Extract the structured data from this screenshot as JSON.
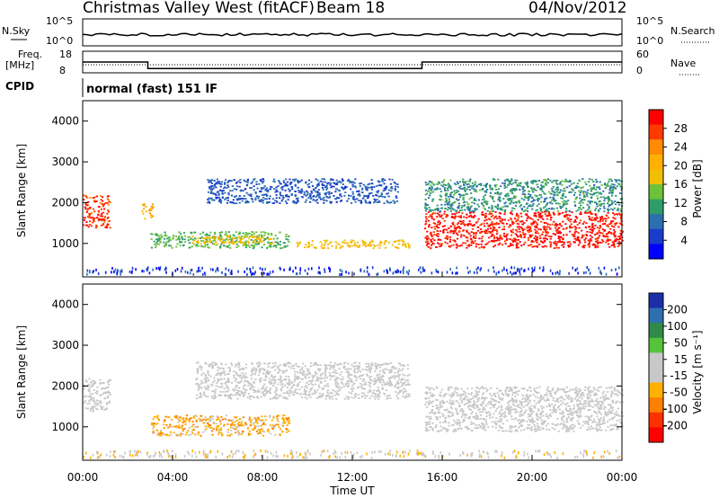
{
  "header": {
    "station": "Christmas Valley West (fitACF)",
    "beam": "Beam 18",
    "date": "04/Nov/2012"
  },
  "top_panels": {
    "nsky_label": "N.Sky",
    "nsearch_label": "N.Search",
    "nsky_ticks": [
      "10^5",
      "10^0"
    ],
    "nsearch_ticks": [
      "10^5",
      "10^0"
    ],
    "freq_label_1": "Freq.",
    "freq_label_2": "[MHz]",
    "freq_ticks": [
      "18",
      "8"
    ],
    "nave_label": "Nave",
    "nave_ticks": [
      "60",
      "0"
    ],
    "cpid_label": "CPID",
    "cpid_text": "normal (fast) 151 IF"
  },
  "colorbars": {
    "power_label": "Power [dB]",
    "power_ticks": [
      "28",
      "24",
      "20",
      "16",
      "12",
      "8",
      "4"
    ],
    "power_colors": [
      "#ff0000",
      "#ff3a00",
      "#ff8c00",
      "#ffb000",
      "#f0c000",
      "#6dc23a",
      "#2f9d6a",
      "#2b6fb0",
      "#1a3ccc",
      "#0000ff"
    ],
    "velocity_label": "Velocity [m s⁻¹]",
    "velocity_ticks": [
      "200",
      "100",
      "50",
      "15",
      "-15",
      "-50",
      "-100",
      "-200"
    ],
    "velocity_colors": [
      "#1c2fa8",
      "#2f6fb0",
      "#2f8a4a",
      "#55c43a",
      "#c8c8c8",
      "#c8c8c8",
      "#ffb000",
      "#ff8000",
      "#ff3000",
      "#ff0000"
    ]
  },
  "axes": {
    "ylabel": "Slant Range [km]",
    "xlabel": "Time UT",
    "yticks": [
      "4000",
      "3000",
      "2000",
      "1000"
    ],
    "xticks": [
      "00:00",
      "04:00",
      "08:00",
      "12:00",
      "16:00",
      "20:00",
      "00:00"
    ]
  },
  "chart_data": {
    "type": "heatmap",
    "title": "Christmas Valley West (fitACF) Beam 18 04/Nov/2012",
    "x_unit": "hours UT",
    "xlim": [
      0,
      24
    ],
    "ylim": [
      180,
      4500
    ],
    "panels": [
      {
        "name": "Power [dB]",
        "clim": [
          0,
          30
        ],
        "regions": [
          {
            "t0": 0.0,
            "t1": 1.2,
            "r0": 1400,
            "r1": 2200,
            "value": 26
          },
          {
            "t0": 2.6,
            "t1": 3.1,
            "r0": 1600,
            "r1": 2000,
            "value": 20
          },
          {
            "t0": 3.0,
            "t1": 9.2,
            "r0": 900,
            "r1": 1300,
            "value": 12
          },
          {
            "t0": 4.8,
            "t1": 8.5,
            "r0": 1000,
            "r1": 1200,
            "value": 18
          },
          {
            "t0": 5.5,
            "t1": 14.0,
            "r0": 2000,
            "r1": 2600,
            "value": 6
          },
          {
            "t0": 9.5,
            "t1": 14.5,
            "r0": 900,
            "r1": 1100,
            "value": 18
          },
          {
            "t0": 15.2,
            "t1": 24.0,
            "r0": 900,
            "r1": 1800,
            "value": 28
          },
          {
            "t0": 15.2,
            "t1": 24.0,
            "r0": 1800,
            "r1": 2600,
            "value": 10
          }
        ]
      },
      {
        "name": "Velocity [m s-1]",
        "clim": [
          -200,
          200
        ],
        "regions": [
          {
            "t0": 0.0,
            "t1": 1.2,
            "r0": 1400,
            "r1": 2200,
            "value": 0
          },
          {
            "t0": 3.0,
            "t1": 9.2,
            "r0": 800,
            "r1": 1300,
            "value": -60
          },
          {
            "t0": 5.0,
            "t1": 14.5,
            "r0": 1700,
            "r1": 2600,
            "value": 0
          },
          {
            "t0": 15.2,
            "t1": 24.0,
            "r0": 900,
            "r1": 2000,
            "value": 0
          }
        ]
      }
    ],
    "freq_mhz": [
      {
        "t0": 0.0,
        "t1": 2.9,
        "value": 13
      },
      {
        "t0": 2.9,
        "t1": 15.1,
        "value": 10
      },
      {
        "t0": 15.1,
        "t1": 24.0,
        "value": 13
      }
    ]
  }
}
